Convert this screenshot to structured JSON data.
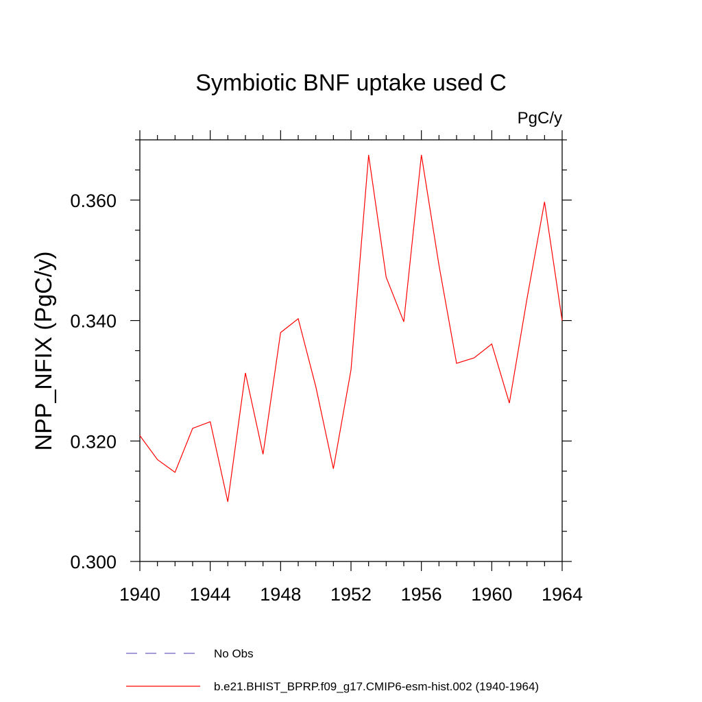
{
  "chart_data": {
    "type": "line",
    "title": "Symbiotic BNF uptake used C",
    "units_label": "PgC/y",
    "ylabel": "NPP_NFIX  (PgC/y)",
    "xlabel": "",
    "xlim": [
      1940,
      1964
    ],
    "ylim": [
      0.3,
      0.37
    ],
    "x_ticks": [
      1940,
      1944,
      1948,
      1952,
      1956,
      1960,
      1964
    ],
    "x_tick_labels": [
      "1940",
      "1944",
      "1948",
      "1952",
      "1956",
      "1960",
      "1964"
    ],
    "y_ticks": [
      0.3,
      0.32,
      0.34,
      0.36
    ],
    "y_tick_labels": [
      "0.300",
      "0.320",
      "0.340",
      "0.360"
    ],
    "series": [
      {
        "name": "b.e21.BHIST_BPRP.f09_g17.CMIP6-esm-hist.002 (1940-1964)",
        "color": "#ff0000",
        "x": [
          1940,
          1941,
          1942,
          1943,
          1944,
          1945,
          1946,
          1947,
          1948,
          1949,
          1950,
          1951,
          1952,
          1953,
          1954,
          1955,
          1956,
          1957,
          1958,
          1959,
          1960,
          1961,
          1962,
          1963,
          1964
        ],
        "values": [
          0.3209,
          0.3169,
          0.3148,
          0.3221,
          0.3232,
          0.3099,
          0.3313,
          0.3178,
          0.338,
          0.3403,
          0.329,
          0.3154,
          0.3318,
          0.3675,
          0.3472,
          0.3398,
          0.3675,
          0.3492,
          0.3329,
          0.3338,
          0.3361,
          0.3263,
          0.3436,
          0.3597,
          0.34
        ]
      }
    ],
    "legend": [
      {
        "label": "No Obs",
        "color": "#6b5fbf",
        "style": "dashed"
      },
      {
        "label": "b.e21.BHIST_BPRP.f09_g17.CMIP6-esm-hist.002 (1940-1964)",
        "color": "#ff0000",
        "style": "solid"
      }
    ],
    "legend_position": "bottom",
    "grid": false
  }
}
